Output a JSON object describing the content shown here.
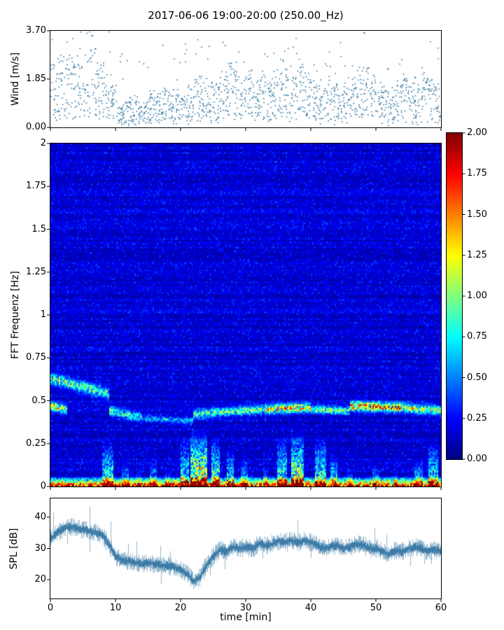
{
  "title": "2017-06-06 19:00-20:00 (250.00_Hz)",
  "axis": {
    "xlabel": "time [min]",
    "xtick_values": [
      0,
      10,
      20,
      30,
      40,
      50,
      60
    ],
    "xtick_labels": [
      "0",
      "10",
      "20",
      "30",
      "40",
      "50",
      "60"
    ]
  },
  "chart_data": [
    {
      "type": "scatter",
      "name": "wind-speed",
      "ylabel": "Wind [m/s]",
      "ylim": [
        0.0,
        3.7
      ],
      "yticks": [
        0.0,
        1.85,
        3.7
      ],
      "ytick_labels": [
        "0.00",
        "1.85",
        "3.70"
      ],
      "xlim": [
        0,
        60
      ],
      "marker_color": "#2e74a3",
      "points_per_minute": 26,
      "minute_mean_wind": [
        1.5,
        1.7,
        1.8,
        1.7,
        1.6,
        1.7,
        1.8,
        1.6,
        1.4,
        1.0,
        0.55,
        0.6,
        0.75,
        0.7,
        0.65,
        0.8,
        0.75,
        0.85,
        0.9,
        0.85,
        0.8,
        1.0,
        1.1,
        1.15,
        1.0,
        1.05,
        1.2,
        1.5,
        1.35,
        1.15,
        1.3,
        1.15,
        1.2,
        1.05,
        1.3,
        1.55,
        1.4,
        1.25,
        1.6,
        1.3,
        1.05,
        0.95,
        1.1,
        1.0,
        0.9,
        1.05,
        1.15,
        1.35,
        1.5,
        1.3,
        1.05,
        0.9,
        0.85,
        1.0,
        1.2,
        1.1,
        1.0,
        1.35,
        1.2,
        1.0
      ]
    },
    {
      "type": "heatmap",
      "name": "fft-spectrogram",
      "ylabel": "FFT Frequenz [Hz]",
      "ylim": [
        0,
        2
      ],
      "yticks": [
        2,
        1.75,
        1.5,
        1.25,
        1,
        0.75,
        0.5,
        0.25,
        0
      ],
      "ytick_labels": [
        "2",
        "1.75",
        "1.5",
        "1.25",
        "1",
        "0.75",
        "0.5",
        "0.25",
        "0"
      ],
      "xlim": [
        0,
        60
      ],
      "colormap": "jet",
      "clim": [
        0,
        2
      ],
      "colorbar_tick_values": [
        2,
        1.75,
        1.5,
        1.25,
        1,
        0.75,
        0.5,
        0.25,
        0
      ],
      "colorbar_tick_labels": [
        "2.00",
        "1.75",
        "1.50",
        "1.25",
        "1.00",
        "0.75",
        "0.50",
        "0.25",
        "0.00"
      ],
      "background": {
        "base": 0.1,
        "noise": 0.3,
        "row_streak": 0.12
      },
      "bottom_band": {
        "fmax": 0.055,
        "amp": 2.0
      },
      "bands": [
        {
          "t0": 0,
          "t1": 9,
          "f0": 0.63,
          "f1": 0.54,
          "w": 0.03,
          "amp": 0.85
        },
        {
          "t0": 0,
          "t1": 2.5,
          "f0": 0.47,
          "f1": 0.45,
          "w": 0.025,
          "amp": 1.1
        },
        {
          "t0": 9,
          "t1": 14,
          "f0": 0.44,
          "f1": 0.4,
          "w": 0.025,
          "amp": 0.8
        },
        {
          "t0": 14,
          "t1": 22,
          "f0": 0.4,
          "f1": 0.38,
          "w": 0.02,
          "amp": 0.5
        },
        {
          "t0": 22,
          "t1": 33,
          "f0": 0.42,
          "f1": 0.45,
          "w": 0.025,
          "amp": 0.8
        },
        {
          "t0": 33,
          "t1": 40,
          "f0": 0.45,
          "f1": 0.46,
          "w": 0.025,
          "amp": 1.25
        },
        {
          "t0": 40,
          "t1": 46,
          "f0": 0.45,
          "f1": 0.44,
          "w": 0.022,
          "amp": 0.85
        },
        {
          "t0": 46,
          "t1": 54,
          "f0": 0.47,
          "f1": 0.46,
          "w": 0.025,
          "amp": 1.5
        },
        {
          "t0": 54,
          "t1": 60,
          "f0": 0.46,
          "f1": 0.44,
          "w": 0.025,
          "amp": 1.05
        }
      ],
      "bursts": [
        {
          "t": 8.8,
          "dur": 1.6,
          "fmax": 0.28,
          "amp": 1.1
        },
        {
          "t": 11.5,
          "dur": 1.0,
          "fmax": 0.14,
          "amp": 0.8
        },
        {
          "t": 13.5,
          "dur": 0.8,
          "fmax": 0.1,
          "amp": 0.7
        },
        {
          "t": 15.8,
          "dur": 1.0,
          "fmax": 0.16,
          "amp": 0.8
        },
        {
          "t": 18.0,
          "dur": 0.8,
          "fmax": 0.1,
          "amp": 0.7
        },
        {
          "t": 20.6,
          "dur": 1.2,
          "fmax": 0.3,
          "amp": 1.0
        },
        {
          "t": 22.8,
          "dur": 2.6,
          "fmax": 0.34,
          "amp": 1.7
        },
        {
          "t": 25.4,
          "dur": 1.4,
          "fmax": 0.3,
          "amp": 1.3
        },
        {
          "t": 27.6,
          "dur": 1.2,
          "fmax": 0.22,
          "amp": 1.0
        },
        {
          "t": 29.8,
          "dur": 1.0,
          "fmax": 0.16,
          "amp": 0.9
        },
        {
          "t": 33.0,
          "dur": 0.8,
          "fmax": 0.12,
          "amp": 0.8
        },
        {
          "t": 35.6,
          "dur": 1.4,
          "fmax": 0.3,
          "amp": 1.2
        },
        {
          "t": 38.0,
          "dur": 2.0,
          "fmax": 0.34,
          "amp": 1.5
        },
        {
          "t": 41.5,
          "dur": 1.6,
          "fmax": 0.3,
          "amp": 1.1
        },
        {
          "t": 43.6,
          "dur": 1.0,
          "fmax": 0.2,
          "amp": 0.9
        },
        {
          "t": 46.0,
          "dur": 0.8,
          "fmax": 0.1,
          "amp": 0.7
        },
        {
          "t": 50.0,
          "dur": 1.0,
          "fmax": 0.12,
          "amp": 0.8
        },
        {
          "t": 53.0,
          "dur": 0.8,
          "fmax": 0.1,
          "amp": 0.7
        },
        {
          "t": 56.5,
          "dur": 1.2,
          "fmax": 0.16,
          "amp": 0.9
        },
        {
          "t": 58.8,
          "dur": 1.4,
          "fmax": 0.26,
          "amp": 1.1
        }
      ]
    },
    {
      "type": "line",
      "name": "spl",
      "ylabel": "SPL [dB]",
      "ylim": [
        14,
        46
      ],
      "yticks": [
        20,
        30,
        40
      ],
      "ytick_labels": [
        "20",
        "30",
        "40"
      ],
      "xlim": [
        0,
        60
      ],
      "line_color": "#3d7ba8",
      "x_minutes_step": 1,
      "values": [
        33,
        35,
        36.5,
        37,
        36.5,
        36,
        35.5,
        35,
        34,
        31,
        27.5,
        26,
        26,
        25.5,
        25,
        25.5,
        25,
        24.5,
        24.5,
        24,
        23,
        22,
        19.5,
        21,
        25,
        27.5,
        29.5,
        29,
        30.5,
        30,
        30.5,
        30,
        31.5,
        31,
        31.5,
        32.5,
        32,
        32.5,
        32,
        32.5,
        32,
        31,
        30,
        30.5,
        31,
        30,
        30.5,
        31.5,
        31,
        30,
        30,
        29,
        28,
        29.5,
        29,
        30,
        30.5,
        30,
        29,
        29.5,
        29
      ]
    }
  ]
}
